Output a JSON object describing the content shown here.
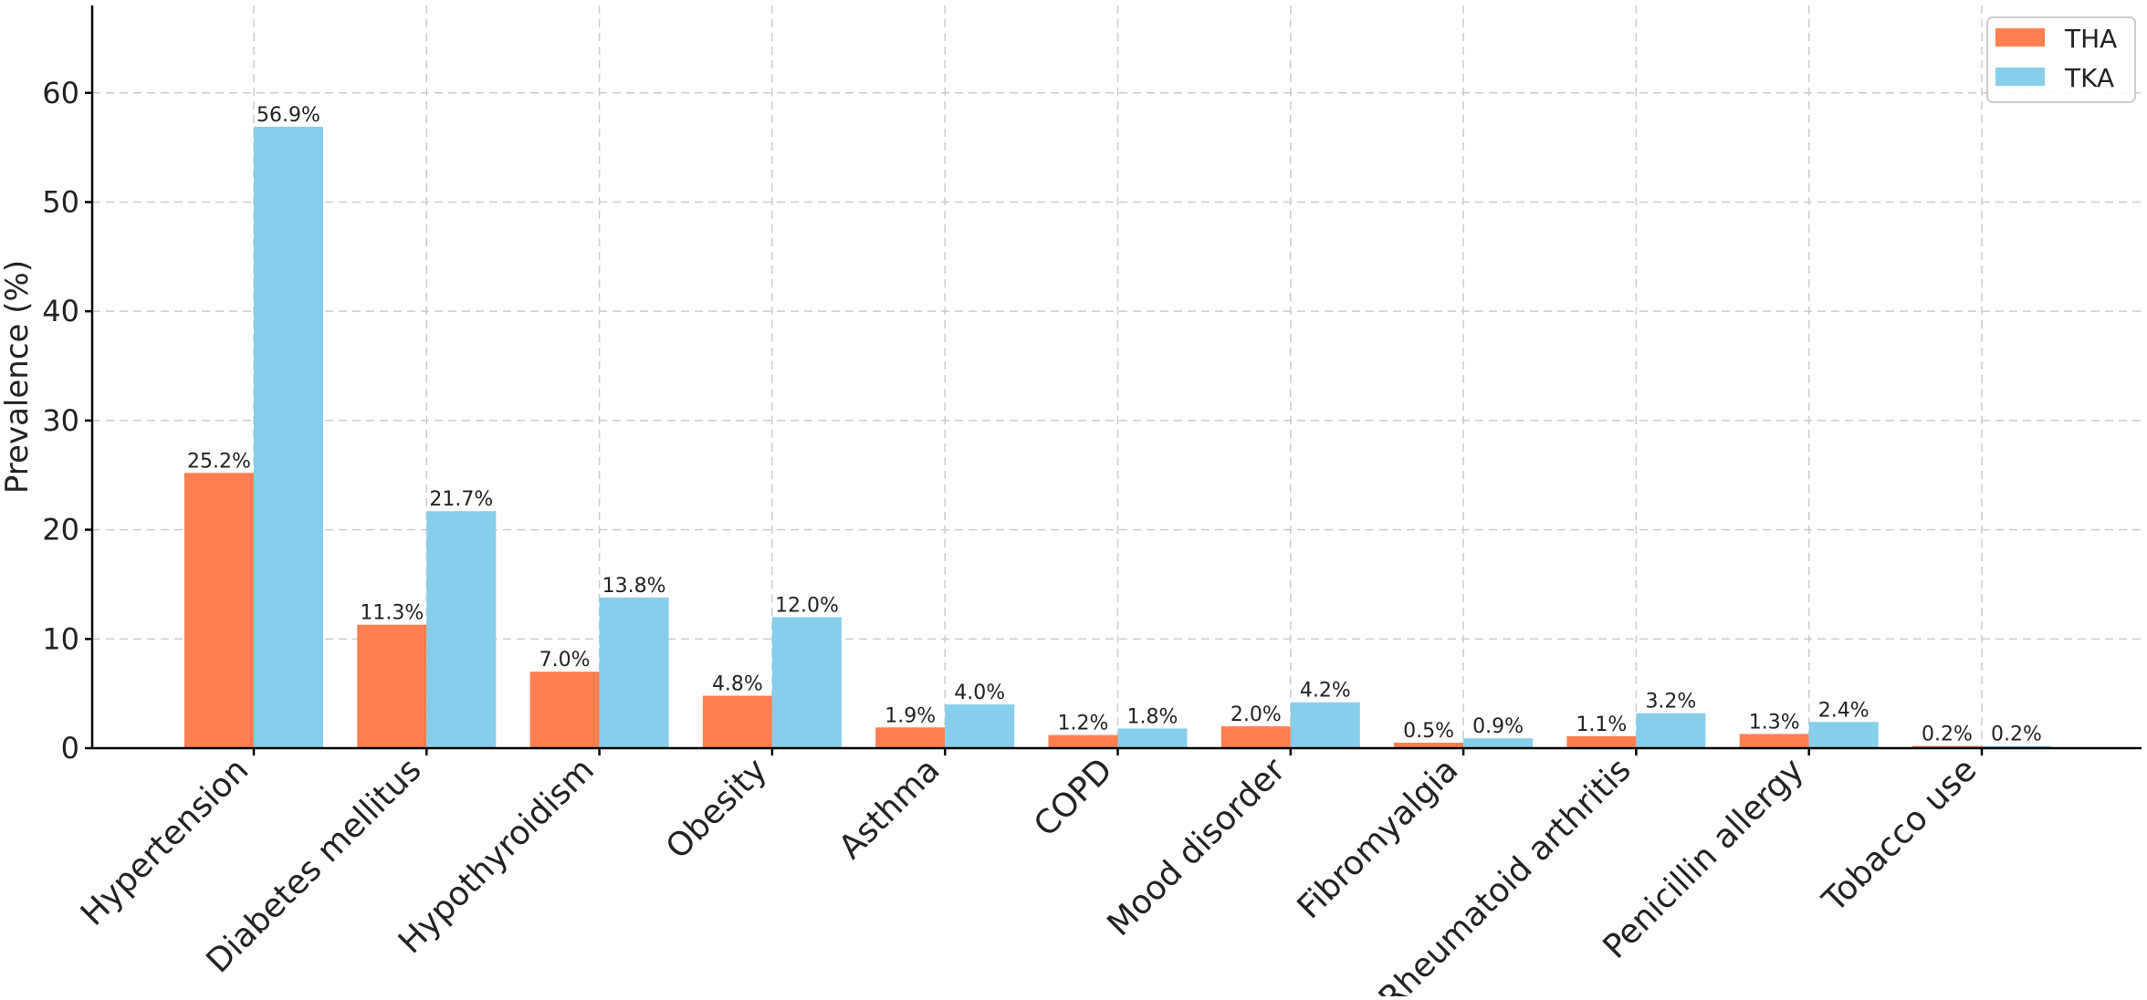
{
  "chart_data": {
    "type": "bar",
    "title": "",
    "xlabel": "",
    "ylabel": "Prevalence (%)",
    "ylim": [
      0,
      68
    ],
    "yticks": [
      0,
      10,
      20,
      30,
      40,
      50,
      60
    ],
    "grid": true,
    "legend_position": "top-right",
    "categories": [
      "Hypertension",
      "Diabetes mellitus",
      "Hypothyroidism",
      "Obesity",
      "Asthma",
      "COPD",
      "Mood disorder",
      "Fibromyalgia",
      "Rheumatoid arthritis",
      "Penicillin allergy",
      "Tobacco use"
    ],
    "series": [
      {
        "name": "THA",
        "color": "#FF7F50",
        "values": [
          25.2,
          11.3,
          7.0,
          4.8,
          1.9,
          1.2,
          2.0,
          0.5,
          1.1,
          1.3,
          0.2
        ],
        "labels": [
          "25.2%",
          "11.3%",
          "7.0%",
          "4.8%",
          "1.9%",
          "1.2%",
          "2.0%",
          "0.5%",
          "1.1%",
          "1.3%",
          "0.2%"
        ]
      },
      {
        "name": "TKA",
        "color": "#87CEEB",
        "values": [
          56.9,
          21.7,
          13.8,
          12.0,
          4.0,
          1.8,
          4.2,
          0.9,
          3.2,
          2.4,
          0.2
        ],
        "labels": [
          "56.9%",
          "21.7%",
          "13.8%",
          "12.0%",
          "4.0%",
          "1.8%",
          "4.2%",
          "0.9%",
          "3.2%",
          "2.4%",
          "0.2%"
        ]
      }
    ]
  }
}
